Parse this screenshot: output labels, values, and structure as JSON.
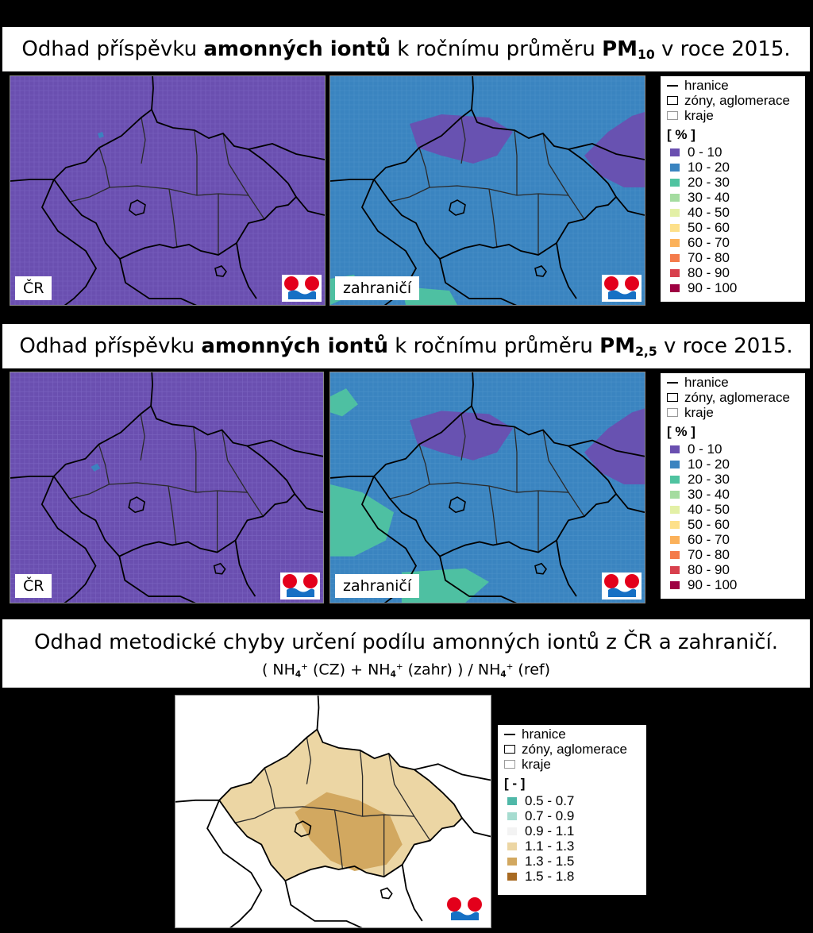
{
  "titles": {
    "pm10": {
      "prefix": "Odhad příspěvku ",
      "bold": "amonných iontů",
      "middle": " k ročnímu průměru ",
      "pm": "PM",
      "sub": "10",
      "suffix": " v roce 2015."
    },
    "pm25": {
      "prefix": "Odhad příspěvku ",
      "bold": "amonných iontů",
      "middle": " k ročnímu průměru ",
      "pm": "PM",
      "sub": "2,5",
      "suffix": " v roce 2015."
    },
    "error": {
      "line1": "Odhad metodické chyby určení podílu amonných iontů z ČR a zahraničí.",
      "f_open": "( NH",
      "f_sub1": "4",
      "f_sup1": "+",
      "f_cz": " (CZ) + NH",
      "f_sub2": "4",
      "f_sup2": "+",
      "f_zahr": " (zahr) ) / NH",
      "f_sub3": "4",
      "f_sup3": "+",
      "f_ref": " (ref)"
    }
  },
  "labels": {
    "cr": "ČR",
    "zahranici": "zahraničí"
  },
  "legend": {
    "boundaries": [
      "hranice",
      "zóny, aglomerace",
      "kraje"
    ],
    "unit_pct": "[ % ]",
    "classes_pct": [
      {
        "label": "0 - 10",
        "color": "#6a4fb0"
      },
      {
        "label": "10 - 20",
        "color": "#3a84c0"
      },
      {
        "label": "20 - 30",
        "color": "#4fc3a0"
      },
      {
        "label": "30 - 40",
        "color": "#a4dca0"
      },
      {
        "label": "40 - 50",
        "color": "#e3f0a6"
      },
      {
        "label": "50 - 60",
        "color": "#fde08a"
      },
      {
        "label": "60 - 70",
        "color": "#fbb15a"
      },
      {
        "label": "70 - 80",
        "color": "#f47b4b"
      },
      {
        "label": "80 - 90",
        "color": "#d8404d"
      },
      {
        "label": "90 - 100",
        "color": "#9e0142"
      }
    ],
    "unit_ratio": "[ - ]",
    "classes_ratio": [
      {
        "label": "0.5 - 0.7",
        "color": "#4fb8a8"
      },
      {
        "label": "0.7 - 0.9",
        "color": "#a6dcd0"
      },
      {
        "label": "0.9 - 1.1",
        "color": "#f3f3f3"
      },
      {
        "label": "1.1 - 1.3",
        "color": "#ecd6a4"
      },
      {
        "label": "1.3 - 1.5",
        "color": "#d2a860"
      },
      {
        "label": "1.5 - 1.8",
        "color": "#a86a22"
      }
    ]
  }
}
